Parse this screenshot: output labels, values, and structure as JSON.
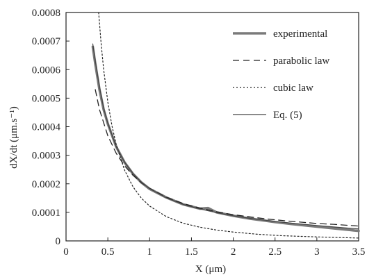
{
  "chart_data": {
    "type": "line",
    "title": "",
    "xlabel": "X (μm)",
    "ylabel": "dX/dt (μm.s⁻¹)",
    "xlim": [
      0,
      3.5
    ],
    "ylim": [
      0,
      0.0008
    ],
    "grid": false,
    "legend_position": "top-right",
    "x_ticks": [
      0,
      0.5,
      1,
      1.5,
      2,
      2.5,
      3,
      3.5
    ],
    "x_tick_labels": [
      "0",
      "0.5",
      "1",
      "1.5",
      "2",
      "2.5",
      "3",
      "3.5"
    ],
    "y_ticks": [
      0,
      0.0001,
      0.0002,
      0.0003,
      0.0004,
      0.0005,
      0.0006,
      0.0007,
      0.0008
    ],
    "y_tick_labels": [
      "0",
      "0.0001",
      "0.0002",
      "0.0003",
      "0.0004",
      "0.0005",
      "0.0006",
      "0.0007",
      "0.0008"
    ],
    "series": [
      {
        "name": "experimental",
        "style": "thick-solid",
        "color": "#7a7a7a",
        "x": [
          0.32,
          0.35,
          0.4,
          0.45,
          0.5,
          0.6,
          0.7,
          0.8,
          0.9,
          1.0,
          1.2,
          1.4,
          1.6,
          1.7,
          1.8,
          2.0,
          2.2,
          2.3,
          2.5,
          2.7,
          3.0,
          3.2,
          3.4,
          3.5
        ],
        "y": [
          0.00068,
          0.00062,
          0.00053,
          0.00046,
          0.00041,
          0.00033,
          0.000275,
          0.000235,
          0.000205,
          0.000182,
          0.000152,
          0.000128,
          0.000113,
          0.000115,
          0.0001,
          8.8e-05,
          7.8e-05,
          7.4e-05,
          6.6e-05,
          5.9e-05,
          5e-05,
          4.4e-05,
          3.8e-05,
          3.5e-05
        ]
      },
      {
        "name": "parabolic law",
        "style": "dashed",
        "color": "#222222",
        "x": [
          0.35,
          0.4,
          0.5,
          0.6,
          0.7,
          0.8,
          0.9,
          1.0,
          1.2,
          1.4,
          1.6,
          1.8,
          2.0,
          2.2,
          2.4,
          2.6,
          2.8,
          3.0,
          3.2,
          3.4,
          3.5
        ],
        "y": [
          0.00053,
          0.00046,
          0.000368,
          0.000307,
          0.000263,
          0.00023,
          0.000204,
          0.000184,
          0.000153,
          0.000131,
          0.000115,
          0.000102,
          9.2e-05,
          8.4e-05,
          7.7e-05,
          7.1e-05,
          6.6e-05,
          6.1e-05,
          5.8e-05,
          5.4e-05,
          5.2e-05
        ]
      },
      {
        "name": "cubic law",
        "style": "dotted",
        "color": "#222222",
        "x": [
          0.39,
          0.42,
          0.45,
          0.5,
          0.55,
          0.6,
          0.7,
          0.8,
          0.9,
          1.0,
          1.2,
          1.4,
          1.6,
          1.8,
          2.0,
          2.3,
          2.6,
          3.0,
          3.5
        ],
        "y": [
          0.0008,
          0.00069,
          0.0006,
          0.000486,
          0.000402,
          0.000338,
          0.000248,
          0.00019,
          0.00015,
          0.000122,
          8.5e-05,
          6.2e-05,
          4.8e-05,
          3.8e-05,
          3.1e-05,
          2.3e-05,
          1.8e-05,
          1.4e-05,
          1e-05
        ]
      },
      {
        "name": "Eq. (5)",
        "style": "solid",
        "color": "#444444",
        "x": [
          0.32,
          0.35,
          0.4,
          0.45,
          0.5,
          0.6,
          0.7,
          0.8,
          0.9,
          1.0,
          1.2,
          1.4,
          1.6,
          1.8,
          2.0,
          2.2,
          2.5,
          2.7,
          3.0,
          3.2,
          3.4,
          3.5
        ],
        "y": [
          0.00069,
          0.00063,
          0.00054,
          0.000465,
          0.000412,
          0.00033,
          0.000276,
          0.000236,
          0.000206,
          0.000183,
          0.000151,
          0.000128,
          0.000112,
          9.9e-05,
          8.8e-05,
          7.9e-05,
          6.8e-05,
          6.2e-05,
          5.4e-05,
          4.9e-05,
          4.4e-05,
          4.2e-05
        ]
      }
    ]
  }
}
